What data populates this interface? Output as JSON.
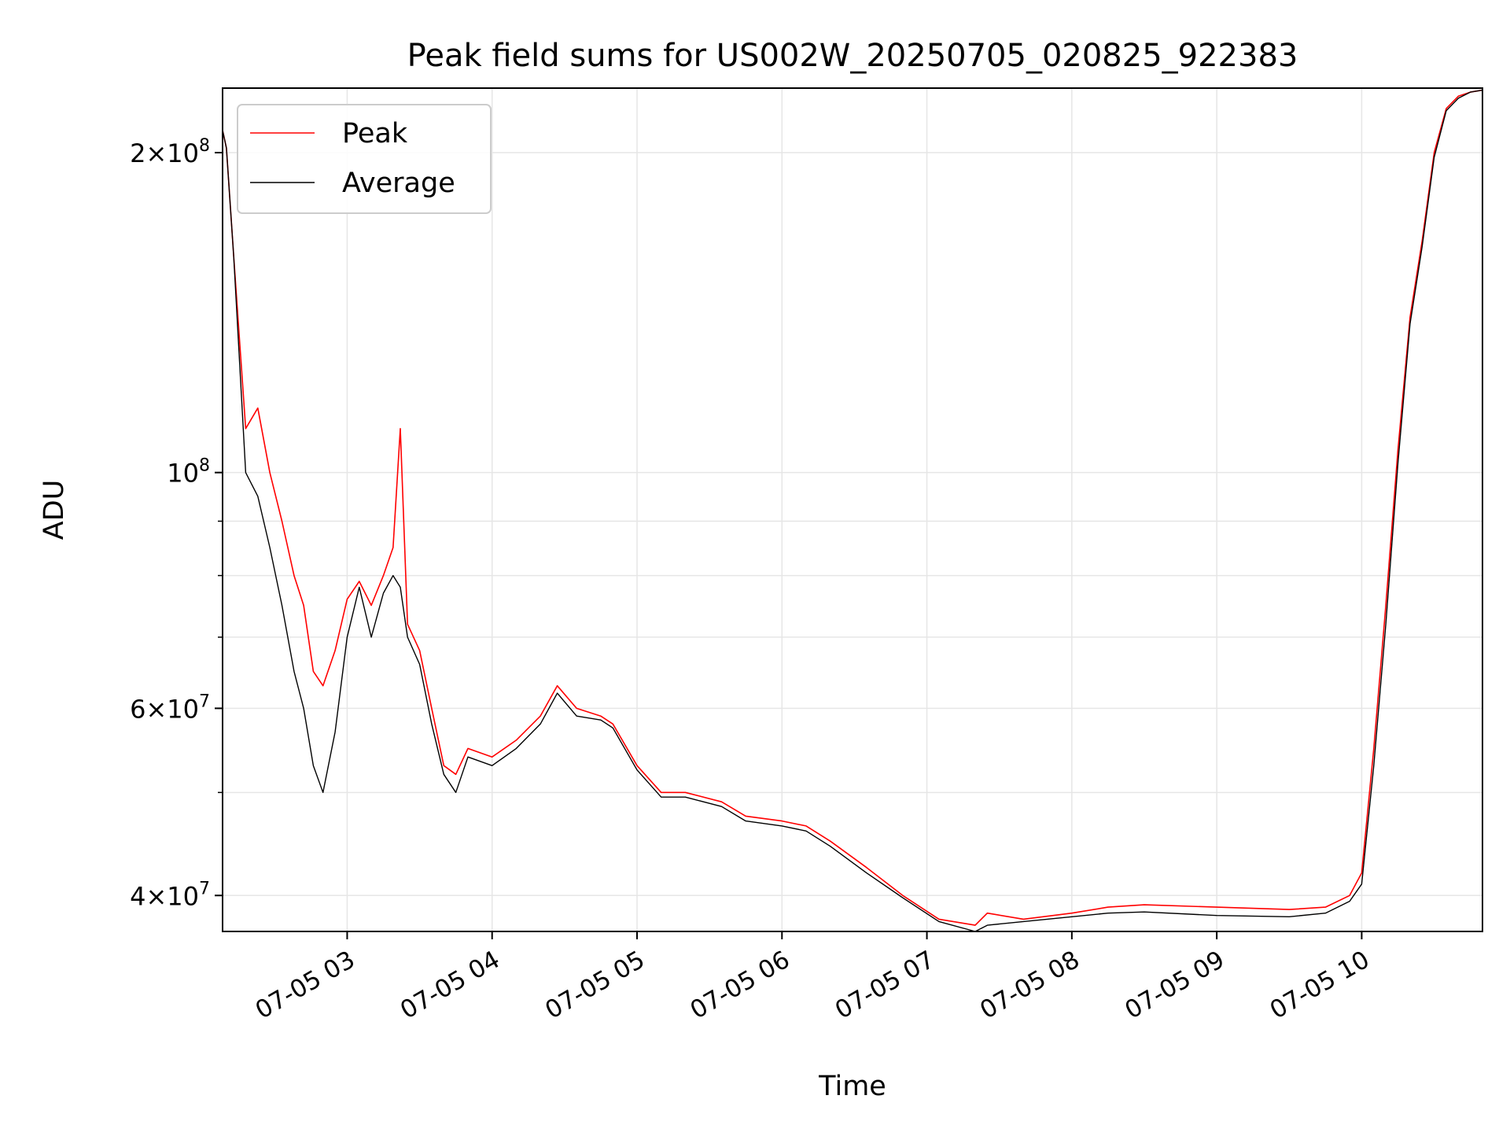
{
  "chart_data": {
    "type": "line",
    "title": "Peak field sums for US002W_20250705_020825_922383",
    "xlabel": "Time",
    "ylabel": "ADU",
    "y_scale": "log",
    "grid": true,
    "legend_placement": "top-left",
    "xlim": [
      "2025-07-05 02:08:25",
      "2025-07-05 10:50:00"
    ],
    "ylim": [
      37000000,
      230000000
    ],
    "x_ticks": [
      "07-05 03",
      "07-05 04",
      "07-05 05",
      "07-05 06",
      "07-05 07",
      "07-05 08",
      "07-05 09",
      "07-05 10"
    ],
    "y_ticks": [
      {
        "value": 200000000,
        "mantissa": "2",
        "exponent": "8"
      },
      {
        "value": 100000000,
        "mantissa": "",
        "exponent": "8"
      },
      {
        "value": 60000000,
        "mantissa": "6",
        "exponent": "7"
      },
      {
        "value": 40000000,
        "mantissa": "4",
        "exponent": "7"
      }
    ],
    "series": [
      {
        "name": "Peak",
        "color": "#ff0000",
        "x": [
          "2025-07-05 02:08:25",
          "2025-07-05 02:10",
          "2025-07-05 02:13",
          "2025-07-05 02:18",
          "2025-07-05 02:23",
          "2025-07-05 02:28",
          "2025-07-05 02:33",
          "2025-07-05 02:38",
          "2025-07-05 02:42",
          "2025-07-05 02:46",
          "2025-07-05 02:50",
          "2025-07-05 02:55",
          "2025-07-05 03:00",
          "2025-07-05 03:05",
          "2025-07-05 03:10",
          "2025-07-05 03:15",
          "2025-07-05 03:19",
          "2025-07-05 03:22",
          "2025-07-05 03:25",
          "2025-07-05 03:30",
          "2025-07-05 03:35",
          "2025-07-05 03:40",
          "2025-07-05 03:45",
          "2025-07-05 03:50",
          "2025-07-05 04:00",
          "2025-07-05 04:10",
          "2025-07-05 04:20",
          "2025-07-05 04:27",
          "2025-07-05 04:35",
          "2025-07-05 04:45",
          "2025-07-05 04:50",
          "2025-07-05 05:00",
          "2025-07-05 05:10",
          "2025-07-05 05:20",
          "2025-07-05 05:35",
          "2025-07-05 05:45",
          "2025-07-05 06:00",
          "2025-07-05 06:10",
          "2025-07-05 06:20",
          "2025-07-05 06:35",
          "2025-07-05 06:50",
          "2025-07-05 07:05",
          "2025-07-05 07:20",
          "2025-07-05 07:25",
          "2025-07-05 07:40",
          "2025-07-05 08:00",
          "2025-07-05 08:15",
          "2025-07-05 08:30",
          "2025-07-05 09:00",
          "2025-07-05 09:30",
          "2025-07-05 09:45",
          "2025-07-05 09:55",
          "2025-07-05 10:00",
          "2025-07-05 10:05",
          "2025-07-05 10:10",
          "2025-07-05 10:15",
          "2025-07-05 10:20",
          "2025-07-05 10:25",
          "2025-07-05 10:30",
          "2025-07-05 10:35",
          "2025-07-05 10:40",
          "2025-07-05 10:45",
          "2025-07-05 10:50"
        ],
        "y": [
          210000000,
          202000000,
          160000000,
          110000000,
          115000000,
          100000000,
          90000000,
          80000000,
          75000000,
          65000000,
          63000000,
          68000000,
          76000000,
          79000000,
          75000000,
          80000000,
          85000000,
          110000000,
          72000000,
          68000000,
          60000000,
          53000000,
          52000000,
          55000000,
          54000000,
          56000000,
          59000000,
          63000000,
          60000000,
          59000000,
          58000000,
          53000000,
          50000000,
          50000000,
          49000000,
          47500000,
          47000000,
          46500000,
          45000000,
          42500000,
          40000000,
          38000000,
          37500000,
          38500000,
          38000000,
          38500000,
          39000000,
          39200000,
          39000000,
          38800000,
          39000000,
          40000000,
          42000000,
          55000000,
          75000000,
          105000000,
          140000000,
          165000000,
          200000000,
          220000000,
          226000000,
          228000000,
          229000000
        ]
      },
      {
        "name": "Average",
        "color": "#000000",
        "x": [
          "2025-07-05 02:08:25",
          "2025-07-05 02:10",
          "2025-07-05 02:13",
          "2025-07-05 02:18",
          "2025-07-05 02:23",
          "2025-07-05 02:28",
          "2025-07-05 02:33",
          "2025-07-05 02:38",
          "2025-07-05 02:42",
          "2025-07-05 02:46",
          "2025-07-05 02:50",
          "2025-07-05 02:55",
          "2025-07-05 03:00",
          "2025-07-05 03:05",
          "2025-07-05 03:10",
          "2025-07-05 03:15",
          "2025-07-05 03:19",
          "2025-07-05 03:22",
          "2025-07-05 03:25",
          "2025-07-05 03:30",
          "2025-07-05 03:35",
          "2025-07-05 03:40",
          "2025-07-05 03:45",
          "2025-07-05 03:50",
          "2025-07-05 04:00",
          "2025-07-05 04:10",
          "2025-07-05 04:20",
          "2025-07-05 04:27",
          "2025-07-05 04:35",
          "2025-07-05 04:45",
          "2025-07-05 04:50",
          "2025-07-05 05:00",
          "2025-07-05 05:10",
          "2025-07-05 05:20",
          "2025-07-05 05:35",
          "2025-07-05 05:45",
          "2025-07-05 06:00",
          "2025-07-05 06:10",
          "2025-07-05 06:20",
          "2025-07-05 06:35",
          "2025-07-05 06:50",
          "2025-07-05 07:05",
          "2025-07-05 07:20",
          "2025-07-05 07:25",
          "2025-07-05 07:40",
          "2025-07-05 08:00",
          "2025-07-05 08:15",
          "2025-07-05 08:30",
          "2025-07-05 09:00",
          "2025-07-05 09:30",
          "2025-07-05 09:45",
          "2025-07-05 09:55",
          "2025-07-05 10:00",
          "2025-07-05 10:05",
          "2025-07-05 10:10",
          "2025-07-05 10:15",
          "2025-07-05 10:20",
          "2025-07-05 10:25",
          "2025-07-05 10:30",
          "2025-07-05 10:35",
          "2025-07-05 10:40",
          "2025-07-05 10:45",
          "2025-07-05 10:50"
        ],
        "y": [
          210000000,
          202000000,
          160000000,
          100000000,
          95000000,
          85000000,
          75000000,
          65000000,
          60000000,
          53000000,
          50000000,
          57000000,
          70000000,
          78000000,
          70000000,
          77000000,
          80000000,
          78000000,
          70000000,
          66000000,
          58000000,
          52000000,
          50000000,
          54000000,
          53000000,
          55000000,
          58000000,
          62000000,
          59000000,
          58500000,
          57500000,
          52500000,
          49500000,
          49500000,
          48500000,
          47000000,
          46500000,
          46000000,
          44500000,
          42000000,
          39800000,
          37800000,
          37000000,
          37500000,
          37800000,
          38200000,
          38500000,
          38600000,
          38300000,
          38200000,
          38500000,
          39500000,
          41000000,
          53000000,
          72000000,
          102000000,
          138000000,
          163000000,
          198000000,
          219000000,
          225000000,
          228000000,
          229000000
        ]
      }
    ]
  }
}
